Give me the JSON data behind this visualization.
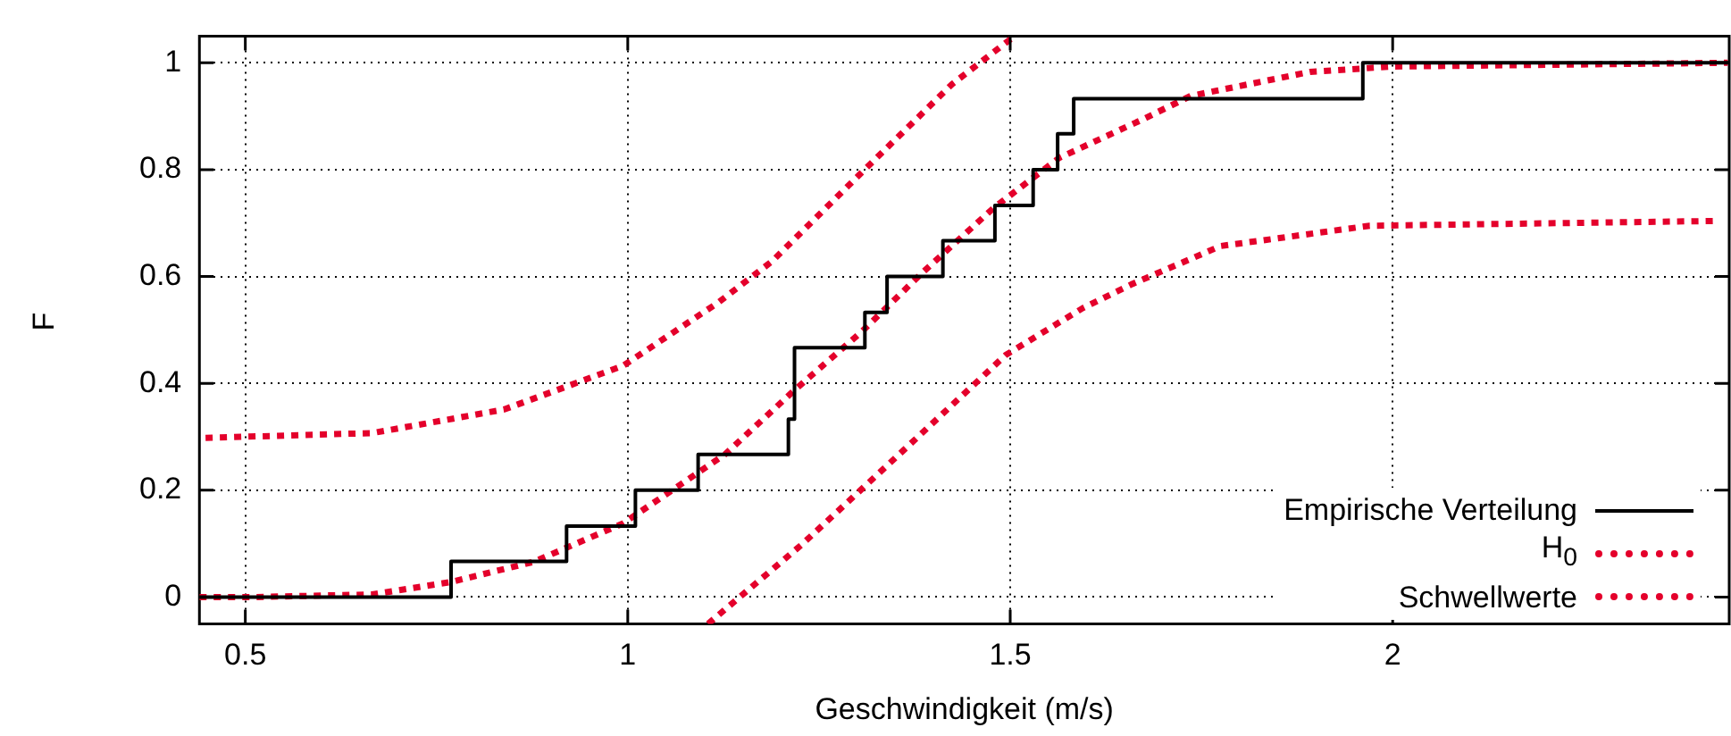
{
  "chart_data": {
    "type": "line",
    "xlabel": "Geschwindigkeit (m/s)",
    "ylabel": "F",
    "xlim": [
      0.44,
      2.44
    ],
    "xticks": [
      0.5,
      1,
      1.5,
      2
    ],
    "ylim": [
      -0.05,
      1.05
    ],
    "yticks": [
      0,
      0.2,
      0.4,
      0.6,
      0.8,
      1
    ],
    "grid": true,
    "legend": "bottom right",
    "marker": "none",
    "series": [
      {
        "name": "Empirische Verteilung",
        "type": "step",
        "color": "#000000",
        "line_style": "solid",
        "x": [
          0.44,
          0.769,
          0.92,
          1.01,
          1.092,
          1.21,
          1.218,
          1.31,
          1.339,
          1.412,
          1.48,
          1.53,
          1.562,
          1.583,
          1.961,
          2.44
        ],
        "values": [
          0,
          0.067,
          0.133,
          0.2,
          0.267,
          0.333,
          0.467,
          0.533,
          0.6,
          0.667,
          0.733,
          0.8,
          0.867,
          0.933,
          1,
          1
        ]
      },
      {
        "name": "H$_{0}$",
        "type": "line",
        "color": "#e4002b",
        "line_style": "dotted",
        "x": [
          0.44,
          0.51,
          0.666,
          0.768,
          0.877,
          0.994,
          1.127,
          1.217,
          1.306,
          1.385,
          1.478,
          1.564,
          1.673,
          1.736,
          1.892,
          2.0,
          2.438
        ],
        "values": [
          0,
          0,
          0.005,
          0.028,
          0.066,
          0.138,
          0.267,
          0.386,
          0.497,
          0.607,
          0.728,
          0.822,
          0.894,
          0.938,
          0.983,
          0.993,
          1.0
        ]
      },
      {
        "name": "Schwellwerte",
        "type": "line",
        "color": "#e4002b",
        "line_style": "dotted",
        "x": [
          0.448,
          0.666,
          0.838,
          0.994,
          1.119,
          1.189,
          1.306,
          1.424,
          1.502
        ],
        "values": [
          0.298,
          0.307,
          0.351,
          0.433,
          0.552,
          0.629,
          0.795,
          0.96,
          1.046
        ]
      },
      {
        "type": "line",
        "color": "#e4002b",
        "line_style": "dotted",
        "x": [
          1.105,
          1.228,
          1.345,
          1.494,
          1.595,
          1.658,
          1.775,
          1.97,
          2.423
        ],
        "values": [
          -0.05,
          0.099,
          0.254,
          0.453,
          0.541,
          0.585,
          0.657,
          0.695,
          0.704
        ]
      }
    ]
  }
}
